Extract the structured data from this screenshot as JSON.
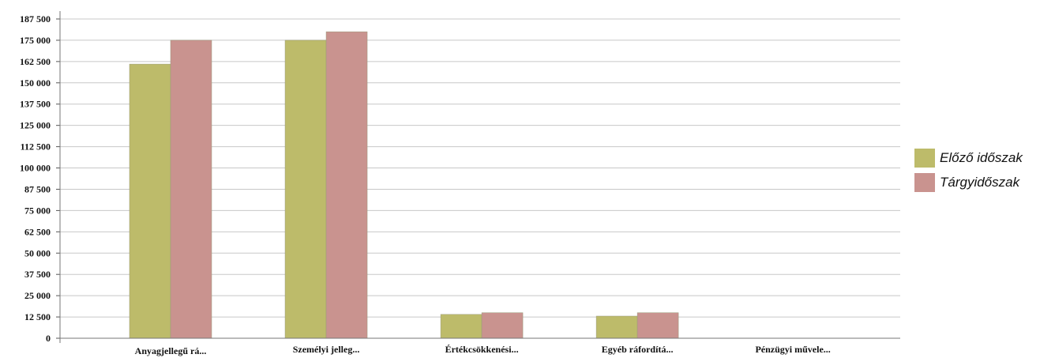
{
  "chart_data": {
    "type": "bar",
    "categories": [
      "Anyagjellegű rá...",
      "Személyi jelleg...",
      "Értékcsökkenési...",
      "Egyéb ráfordítá...",
      "Pénzügyi művele..."
    ],
    "series": [
      {
        "name": "Előző időszak",
        "color": "#bdbb6a",
        "values": [
          161000,
          175000,
          14000,
          13000,
          0
        ]
      },
      {
        "name": "Tárgyidőszak",
        "color": "#c9938f",
        "values": [
          175000,
          180000,
          15000,
          15000,
          0
        ]
      }
    ],
    "yticks": [
      0,
      12500,
      25000,
      37500,
      50000,
      62500,
      75000,
      87500,
      100000,
      112500,
      125000,
      137500,
      150000,
      162500,
      175000,
      187500
    ],
    "ytick_labels": [
      "0",
      "12 500",
      "25 000",
      "37 500",
      "50 000",
      "62 500",
      "75 000",
      "87 500",
      "100 000",
      "112 500",
      "125 000",
      "137 500",
      "150 000",
      "162 500",
      "175 000",
      "187 500"
    ],
    "ylim": [
      0,
      187500
    ],
    "grid": true,
    "legend_position": "right"
  }
}
